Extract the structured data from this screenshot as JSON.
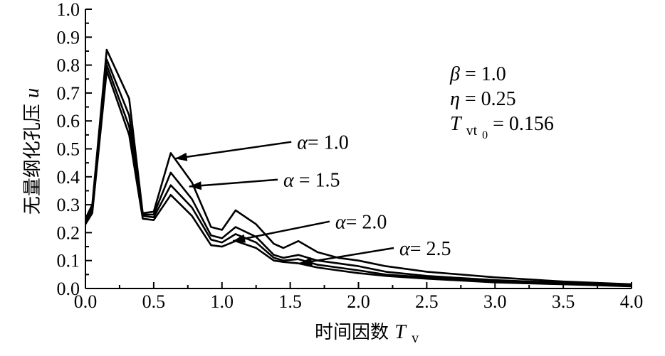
{
  "chart_data": {
    "type": "line",
    "xlabel": "时间因数",
    "xlabel_symbol": "T",
    "xlabel_symbol_sub": "v",
    "ylabel": "无量纲化孔压",
    "ylabel_symbol": "u",
    "xlim": [
      0.0,
      4.0
    ],
    "ylim": [
      0.0,
      1.0
    ],
    "x_ticks": [
      "0.0",
      "0.5",
      "1.0",
      "1.5",
      "2.0",
      "2.5",
      "3.0",
      "3.5",
      "4.0"
    ],
    "y_ticks": [
      "0.0",
      "0.1",
      "0.2",
      "0.3",
      "0.4",
      "0.5",
      "0.6",
      "0.7",
      "0.8",
      "0.9",
      "1.0"
    ],
    "grid": false,
    "parameters": {
      "beta": {
        "symbol": "β",
        "text": "= 1.0"
      },
      "eta": {
        "symbol": "η",
        "text": "= 0.25"
      },
      "tvt0": {
        "symbol": "T",
        "sub": "vt",
        "subsub": "0",
        "text": "= 0.156"
      }
    },
    "series": [
      {
        "name": "α = 1.0",
        "label_symbol": "α",
        "label_text": "= 1.0",
        "x": [
          0.0,
          0.05,
          0.156,
          0.32,
          0.42,
          0.5,
          0.625,
          0.78,
          0.92,
          1.0,
          1.1,
          1.25,
          1.38,
          1.45,
          1.56,
          1.7,
          1.85,
          2.0,
          2.2,
          2.5,
          3.0,
          3.5,
          4.0
        ],
        "values": [
          0.25,
          0.3,
          0.855,
          0.68,
          0.27,
          0.275,
          0.485,
          0.38,
          0.22,
          0.21,
          0.28,
          0.23,
          0.16,
          0.145,
          0.17,
          0.13,
          0.11,
          0.1,
          0.08,
          0.06,
          0.04,
          0.025,
          0.015
        ]
      },
      {
        "name": "α = 1.5",
        "label_symbol": "α",
        "label_text": "= 1.5",
        "x": [
          0.0,
          0.05,
          0.156,
          0.32,
          0.42,
          0.5,
          0.625,
          0.78,
          0.92,
          1.0,
          1.1,
          1.25,
          1.38,
          1.45,
          1.56,
          1.7,
          1.85,
          2.0,
          2.2,
          2.5,
          3.0,
          3.5,
          4.0
        ],
        "values": [
          0.24,
          0.29,
          0.82,
          0.62,
          0.265,
          0.265,
          0.415,
          0.32,
          0.19,
          0.18,
          0.22,
          0.185,
          0.12,
          0.11,
          0.12,
          0.1,
          0.09,
          0.08,
          0.06,
          0.045,
          0.03,
          0.02,
          0.012
        ]
      },
      {
        "name": "α = 2.0",
        "label_symbol": "α",
        "label_text": "= 2.0",
        "x": [
          0.0,
          0.05,
          0.156,
          0.32,
          0.42,
          0.5,
          0.625,
          0.78,
          0.92,
          1.0,
          1.1,
          1.25,
          1.38,
          1.45,
          1.56,
          1.7,
          1.85,
          2.0,
          2.2,
          2.5,
          3.0,
          3.5,
          4.0
        ],
        "values": [
          0.235,
          0.28,
          0.8,
          0.58,
          0.26,
          0.255,
          0.37,
          0.29,
          0.175,
          0.165,
          0.195,
          0.165,
          0.11,
          0.1,
          0.105,
          0.085,
          0.075,
          0.065,
          0.05,
          0.04,
          0.025,
          0.017,
          0.01
        ]
      },
      {
        "name": "α = 2.5",
        "label_symbol": "α",
        "label_text": "= 2.5",
        "x": [
          0.0,
          0.05,
          0.156,
          0.32,
          0.42,
          0.5,
          0.625,
          0.78,
          0.92,
          1.0,
          1.1,
          1.25,
          1.38,
          1.45,
          1.56,
          1.7,
          1.85,
          2.0,
          2.2,
          2.5,
          3.0,
          3.5,
          4.0
        ],
        "values": [
          0.23,
          0.27,
          0.78,
          0.55,
          0.25,
          0.245,
          0.335,
          0.26,
          0.155,
          0.15,
          0.17,
          0.145,
          0.1,
          0.095,
          0.09,
          0.075,
          0.065,
          0.055,
          0.045,
          0.035,
          0.022,
          0.015,
          0.008
        ]
      }
    ],
    "annotations": [
      {
        "series": 0,
        "text_symbol": "α",
        "text": "= 1.0",
        "x_text": 1.55,
        "y_text": 0.525,
        "x_tip": 0.655,
        "y_tip": 0.465
      },
      {
        "series": 1,
        "text_symbol": "α",
        "text": " = 1.5",
        "x_text": 1.45,
        "y_text": 0.39,
        "x_tip": 0.76,
        "y_tip": 0.365
      },
      {
        "series": 2,
        "text_symbol": "α",
        "text": "= 2.0",
        "x_text": 1.83,
        "y_text": 0.24,
        "x_tip": 1.08,
        "y_tip": 0.17
      },
      {
        "series": 3,
        "text_symbol": "α",
        "text": "= 2.5",
        "x_text": 2.3,
        "y_text": 0.145,
        "x_tip": 1.57,
        "y_tip": 0.09
      }
    ]
  }
}
